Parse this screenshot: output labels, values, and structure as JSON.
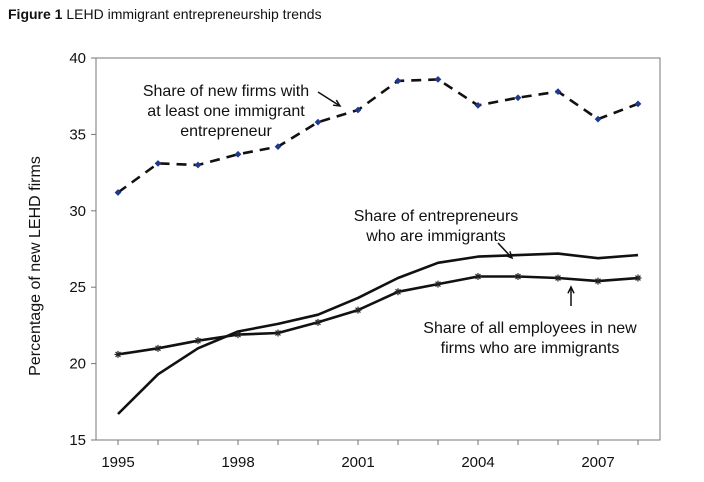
{
  "figure": {
    "number": "Figure 1",
    "caption": "LEHD immigrant entrepreneurship trends"
  },
  "chart_data": {
    "type": "line",
    "ylabel": "Percentage of new LEHD firms",
    "ylim": [
      15,
      40
    ],
    "yticks": [
      "15",
      "20",
      "25",
      "30",
      "35",
      "40"
    ],
    "xlim": [
      1995,
      2008
    ],
    "xticks": [
      "1995",
      "1998",
      "2001",
      "2004",
      "2007"
    ],
    "x": [
      1995,
      1996,
      1997,
      1998,
      1999,
      2000,
      2001,
      2002,
      2003,
      2004,
      2005,
      2006,
      2007,
      2008
    ],
    "grid": false,
    "series": [
      {
        "key": "immigrant_share_new_firms",
        "style": "dashed-with-markers",
        "values": [
          31.2,
          33.1,
          33.0,
          33.7,
          34.2,
          35.8,
          36.6,
          38.5,
          38.6,
          36.9,
          37.4,
          37.8,
          36.0,
          37.0
        ]
      },
      {
        "key": "entrepreneurs_immigrants",
        "style": "solid",
        "values": [
          16.7,
          19.3,
          21.0,
          22.1,
          22.6,
          23.2,
          24.3,
          25.6,
          26.6,
          27.0,
          27.1,
          27.2,
          26.9,
          27.1
        ]
      },
      {
        "key": "employees_immigrants",
        "style": "solid-with-star-markers",
        "values": [
          20.6,
          21.0,
          21.5,
          21.9,
          22.0,
          22.7,
          23.5,
          24.7,
          25.2,
          25.7,
          25.7,
          25.6,
          25.4,
          25.6
        ]
      }
    ],
    "annotations": [
      {
        "lines": [
          "Share of new firms with",
          "at least one immigrant",
          "entrepreneur"
        ]
      },
      {
        "lines": [
          "Share of entrepreneurs",
          "who are immigrants"
        ]
      },
      {
        "lines": [
          "Share of all employees in new",
          "firms who are immigrants"
        ]
      }
    ],
    "colors": {
      "line": "#111111",
      "marker": "#1f3a8a"
    }
  }
}
